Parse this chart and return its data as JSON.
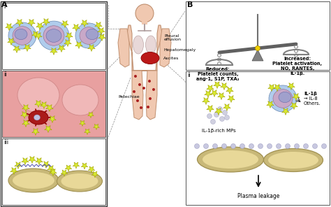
{
  "bg_color": "#ffffff",
  "panel_A_label": "A",
  "panel_B_label": "B",
  "panel_i_label": "i",
  "panel_ii_label": "ii",
  "panel_iii_label": "iii",
  "scale_left_text": "Reduced:\nPlatelet counts,\nang-1, S1P, TXA₂",
  "scale_right_text": "Increased:\nPlatelet activation,\nNO, RANTES,\nIL-1β.",
  "body_label_pleural": "Pleural\neffusion",
  "body_label_hepato": "Hepatomegaly",
  "body_label_ascites": "Ascites",
  "body_label_pete": "Petechiae",
  "label_MPs": "IL-1β-rich MPs",
  "label_IL1b": "IL-1β",
  "label_IL8": "→ IL-8",
  "label_others": "Others.",
  "plasma_label": "Plasma leakage",
  "cell_out": "#b0ccec",
  "cell_mid": "#c8a8c8",
  "cell_nuc": "#a0a0cc",
  "platelet_fc": "#d8e830",
  "platelet_ec": "#a0a000",
  "blood_red": "#aa1a1a",
  "blood_bg": "#e8a0a0",
  "body_skin": "#f0c8b0",
  "body_edge": "#c09070",
  "vessel_fc": "#c8b878",
  "vessel_ec": "#a09050",
  "vessel_inner": "#e8d898",
  "scale_gray": "#888888",
  "chain_gray": "#aaaaaa",
  "lung_fc": "#e8d8d8",
  "lung_ec": "#c0a8a8"
}
